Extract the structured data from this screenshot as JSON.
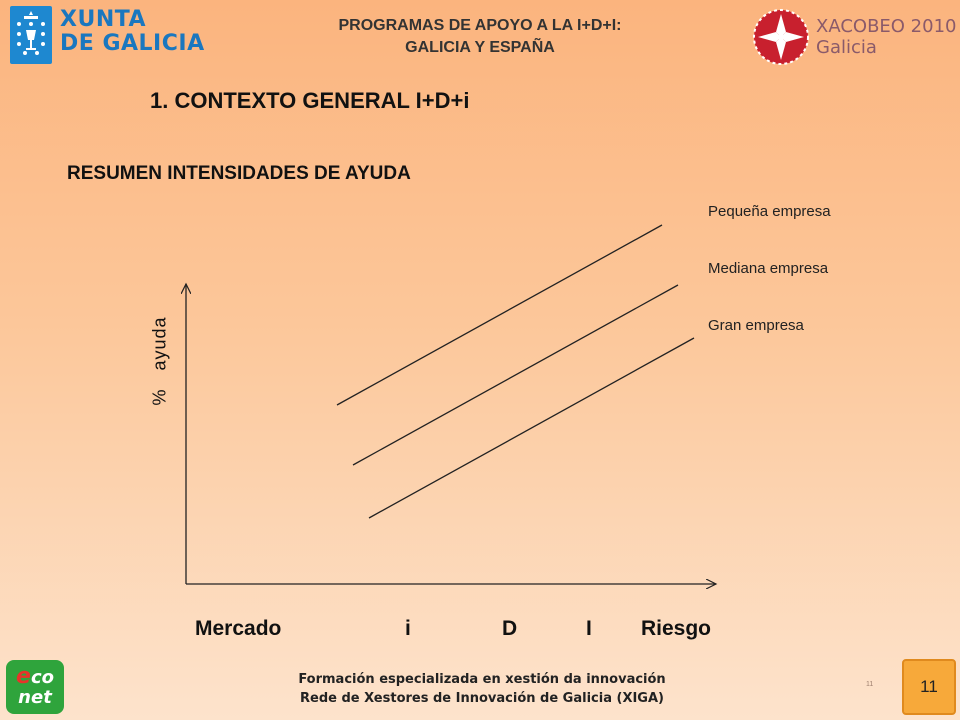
{
  "header": {
    "logo_left_line1": "XUNTA",
    "logo_left_line2": "DE GALICIA",
    "title_line1": "PROGRAMAS DE APOYO A LA I+D+I:",
    "title_line2": "GALICIA Y ESPAÑA",
    "logo_right_line1": "XACOBEO 2010",
    "logo_right_line2": "Galicia"
  },
  "section_title": "1. CONTEXTO GENERAL I+D+i",
  "subtitle": "RESUMEN INTENSIDADES DE AYUDA",
  "diagram": {
    "y_axis_label": "%   ayuda",
    "lines": [
      {
        "label": "Pequeña empresa"
      },
      {
        "label": "Mediana empresa"
      },
      {
        "label": "Gran empresa"
      }
    ],
    "x_labels": [
      "Mercado",
      "i",
      "D",
      "I",
      "Riesgo"
    ]
  },
  "footer": {
    "logo": "econet",
    "logo_e": "e",
    "logo_co": "co",
    "logo_net": "net",
    "line1": "Formación especializada en xestión da innovación",
    "line2": "Rede de Xestores de Innovación de Galicia (XIGA)",
    "small_number": "11",
    "page_number": "11"
  },
  "colors": {
    "xunta_blue": "#1e88d0",
    "xacobeo_red": "#c8202e",
    "econet_green": "#2fa43c",
    "page_badge": "#f7a93a"
  }
}
